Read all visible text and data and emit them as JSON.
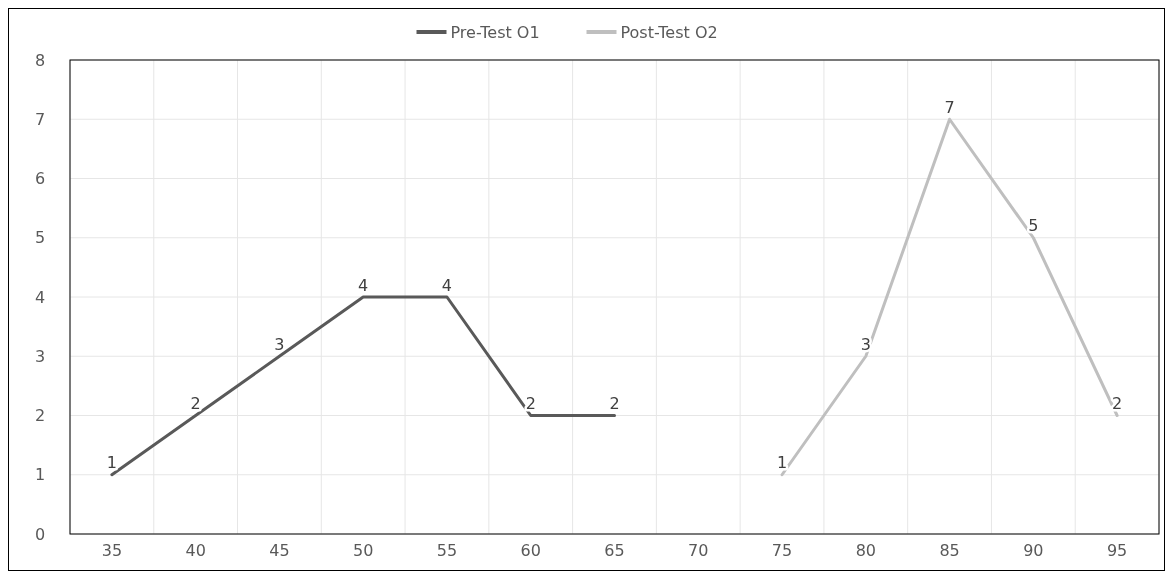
{
  "chart_data": {
    "type": "line",
    "categories": [
      "35",
      "40",
      "45",
      "50",
      "55",
      "60",
      "65",
      "70",
      "75",
      "80",
      "85",
      "90",
      "95"
    ],
    "series": [
      {
        "name": "Pre-Test O1",
        "color": "#595959",
        "values": [
          1,
          2,
          3,
          4,
          4,
          2,
          2,
          null,
          null,
          null,
          null,
          null,
          null
        ]
      },
      {
        "name": "Post-Test O2",
        "color": "#bfbfbf",
        "values": [
          null,
          null,
          null,
          null,
          null,
          null,
          null,
          null,
          1,
          3,
          7,
          5,
          2
        ]
      }
    ],
    "ylim": [
      0,
      8
    ],
    "yticks": [
      0,
      1,
      2,
      3,
      4,
      5,
      6,
      7,
      8
    ],
    "grid": true,
    "legend": "top",
    "data_labels": true,
    "marker": "none",
    "line_style": "solid"
  }
}
